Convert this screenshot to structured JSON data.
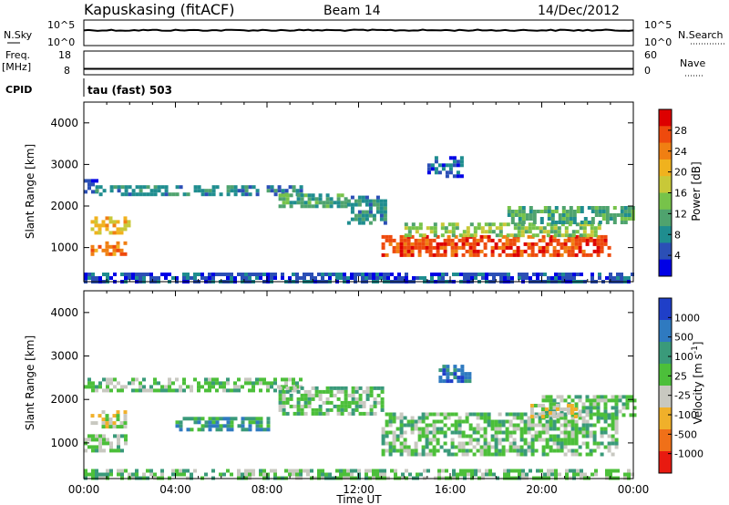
{
  "header": {
    "station": "Kapuskasing (fitACF)",
    "beam": "Beam 14",
    "date": "14/Dec/2012"
  },
  "colors": {
    "data_line": "#000000",
    "axis": "#000000",
    "frame": "#000000"
  },
  "chart_data": [
    {
      "type": "line",
      "panel": "noise",
      "left_label": "N.Sky",
      "right_label": "N.Search",
      "left_ticks": [
        "10^5",
        "10^0"
      ],
      "right_ticks": [
        "10^5",
        "10^0"
      ],
      "ylim": [
        1,
        100000
      ],
      "y_scale": "log",
      "x_hours": [
        0,
        2,
        4,
        6,
        8,
        10,
        12,
        14,
        16,
        18,
        20,
        22,
        23.5,
        24
      ],
      "values": [
        1000,
        1000,
        1000,
        1000,
        1000,
        1000,
        1000,
        1000,
        1000,
        1000,
        1000,
        1000,
        1000,
        1000
      ],
      "grid": false
    },
    {
      "type": "line",
      "panel": "frequency",
      "left_label": "Freq.",
      "left_unit": "[MHz]",
      "right_label": "Nave",
      "left_ticks": [
        "18",
        "8"
      ],
      "right_ticks": [
        "60",
        "0"
      ],
      "ylim": [
        8,
        18
      ],
      "x_hours": [
        0,
        24
      ],
      "values": [
        10.5,
        10.5
      ],
      "grid": false
    },
    {
      "type": "table",
      "panel": "cpid",
      "left_label": "CPID",
      "program": "tau (fast) 503"
    },
    {
      "type": "heatmap",
      "panel": "power",
      "ylabel": "Slant Range [km]",
      "yticks": [
        "4000",
        "3000",
        "2000",
        "1000"
      ],
      "ylim": [
        180,
        4500
      ],
      "xlim": [
        0,
        24
      ],
      "colorbar_label": "Power [dB]",
      "colorbar_ticks": [
        "28",
        "24",
        "20",
        "16",
        "12",
        "8",
        "4"
      ],
      "colorbar_colors": [
        "#0000e6",
        "#2b4fb6",
        "#1f8d8f",
        "#4fa36e",
        "#77c34a",
        "#c8c838",
        "#f0b21e",
        "#f07f12",
        "#ee4a0d",
        "#dd0000"
      ],
      "regions": [
        {
          "t0": 0.0,
          "t1": 0.6,
          "r0": 2300,
          "r1": 2650,
          "level": 1
        },
        {
          "t0": 0.5,
          "t1": 9.5,
          "r0": 2250,
          "r1": 2500,
          "level": 2
        },
        {
          "t0": 8.5,
          "t1": 11.5,
          "r0": 2000,
          "r1": 2300,
          "level": 3
        },
        {
          "t0": 11.5,
          "t1": 13.2,
          "r0": 1600,
          "r1": 2250,
          "level": 2
        },
        {
          "t0": 0.3,
          "t1": 2.0,
          "r0": 1350,
          "r1": 1750,
          "level": 6
        },
        {
          "t0": 0.3,
          "t1": 1.8,
          "r0": 800,
          "r1": 1150,
          "level": 7
        },
        {
          "t0": 13.0,
          "t1": 23.0,
          "r0": 800,
          "r1": 1300,
          "level": 8
        },
        {
          "t0": 14.0,
          "t1": 22.5,
          "r0": 1300,
          "r1": 1600,
          "level": 4
        },
        {
          "t0": 18.5,
          "t1": 24.0,
          "r0": 1600,
          "r1": 2000,
          "level": 3
        },
        {
          "t0": 15.0,
          "t1": 16.5,
          "r0": 2700,
          "r1": 3200,
          "level": 1
        },
        {
          "t0": 0.0,
          "t1": 24.0,
          "r0": 180,
          "r1": 400,
          "level": 1
        }
      ]
    },
    {
      "type": "heatmap",
      "panel": "velocity",
      "ylabel": "Slant Range [km]",
      "yticks": [
        "4000",
        "3000",
        "2000",
        "1000"
      ],
      "ylim": [
        180,
        4500
      ],
      "xlim": [
        0,
        24
      ],
      "xlabel": "Time UT",
      "xticks": [
        "00:00",
        "04:00",
        "08:00",
        "12:00",
        "16:00",
        "20:00",
        "00:00"
      ],
      "colorbar_label": "Velocity [m s^-1]",
      "colorbar_ticks": [
        "1000",
        "500",
        "100",
        "25",
        "-25",
        "-100",
        "-500",
        "-1000"
      ],
      "colorbar_colors": [
        "#1f3fc8",
        "#2f7ac0",
        "#3a9a7a",
        "#4cbf3a",
        "#c8c8c0",
        "#f0b02a",
        "#f07018",
        "#e81a10"
      ],
      "regions": [
        {
          "t0": 0.0,
          "t1": 9.5,
          "r0": 2200,
          "r1": 2500,
          "level": 4
        },
        {
          "t0": 8.5,
          "t1": 13.0,
          "r0": 1700,
          "r1": 2300,
          "level": 4
        },
        {
          "t0": 0.0,
          "t1": 1.8,
          "r0": 800,
          "r1": 1200,
          "level": 4
        },
        {
          "t0": 0.3,
          "t1": 1.8,
          "r0": 1350,
          "r1": 1750,
          "level": 3
        },
        {
          "t0": 13.0,
          "t1": 23.2,
          "r0": 750,
          "r1": 1700,
          "level": 4
        },
        {
          "t0": 20.0,
          "t1": 24.0,
          "r0": 1600,
          "r1": 2100,
          "level": 4
        },
        {
          "t0": 19.5,
          "t1": 21.5,
          "r0": 1600,
          "r1": 1900,
          "level": 3
        },
        {
          "t0": 15.5,
          "t1": 16.8,
          "r0": 2400,
          "r1": 2800,
          "level": 6
        },
        {
          "t0": 4.0,
          "t1": 8.0,
          "r0": 1300,
          "r1": 1600,
          "level": 5
        },
        {
          "t0": 0.0,
          "t1": 24.0,
          "r0": 180,
          "r1": 400,
          "level": 4
        }
      ]
    }
  ]
}
